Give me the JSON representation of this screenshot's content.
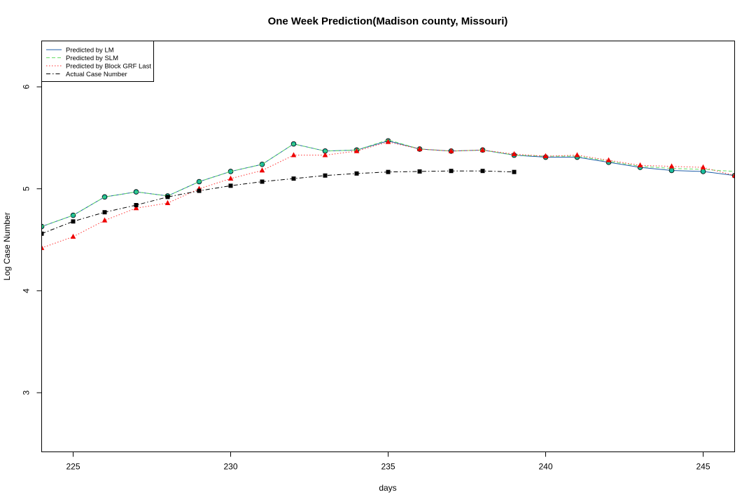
{
  "chart_data": {
    "type": "line",
    "title": "One Week Prediction(Madison county, Missouri)",
    "xlabel": "days",
    "ylabel": "Log Case Number",
    "xlim": [
      224,
      246
    ],
    "ylim": [
      2.42,
      6.45
    ],
    "xticks": [
      225,
      230,
      235,
      240,
      245
    ],
    "yticks": [
      3,
      4,
      5,
      6
    ],
    "legend_position": "top-left",
    "series": [
      {
        "name": "Predicted by LM",
        "color": "#1f5fa8",
        "marker": "circle",
        "marker_fill": "#1abc9c",
        "line_style": "solid",
        "x": [
          224,
          225,
          226,
          227,
          228,
          229,
          230,
          231,
          232,
          233,
          234,
          235,
          236,
          237,
          238,
          239,
          240,
          241,
          242,
          243,
          244,
          245,
          246
        ],
        "y": [
          4.63,
          4.74,
          4.92,
          4.97,
          4.93,
          5.07,
          5.17,
          5.24,
          5.44,
          5.37,
          5.38,
          5.47,
          5.39,
          5.37,
          5.38,
          5.33,
          5.31,
          5.31,
          5.26,
          5.21,
          5.18,
          5.17,
          5.13
        ]
      },
      {
        "name": "Predicted by SLM",
        "color": "#66dd66",
        "marker": "none",
        "line_style": "dashed",
        "x": [
          224,
          225,
          226,
          227,
          228,
          229,
          230,
          231,
          232,
          233,
          234,
          235,
          236,
          237,
          238,
          239,
          240,
          241,
          242,
          243,
          244,
          245,
          246
        ],
        "y": [
          4.63,
          4.74,
          4.92,
          4.97,
          4.93,
          5.07,
          5.17,
          5.24,
          5.44,
          5.37,
          5.38,
          5.48,
          5.39,
          5.37,
          5.38,
          5.33,
          5.32,
          5.32,
          5.27,
          5.22,
          5.2,
          5.19,
          5.17
        ]
      },
      {
        "name": "Predicted by Block GRF Last",
        "color": "#ff3333",
        "marker": "triangle",
        "marker_fill": "#ee0000",
        "line_style": "dotted",
        "x": [
          224,
          225,
          226,
          227,
          228,
          229,
          230,
          231,
          232,
          233,
          234,
          235,
          236,
          237,
          238,
          239,
          240,
          241,
          242,
          243,
          244,
          245,
          246
        ],
        "y": [
          4.42,
          4.53,
          4.69,
          4.81,
          4.86,
          5.0,
          5.1,
          5.18,
          5.33,
          5.33,
          5.37,
          5.46,
          5.39,
          5.37,
          5.38,
          5.34,
          5.32,
          5.33,
          5.28,
          5.23,
          5.22,
          5.21,
          5.13
        ]
      },
      {
        "name": "Actual Case Number",
        "color": "#000000",
        "marker": "square",
        "marker_fill": "#000000",
        "line_style": "dashdot",
        "x": [
          224,
          225,
          226,
          227,
          228,
          229,
          230,
          231,
          232,
          233,
          234,
          235,
          236,
          237,
          238,
          239
        ],
        "y": [
          4.56,
          4.68,
          4.77,
          4.84,
          4.92,
          4.98,
          5.03,
          5.07,
          5.1,
          5.13,
          5.15,
          5.165,
          5.17,
          5.175,
          5.175,
          5.165
        ]
      }
    ]
  }
}
